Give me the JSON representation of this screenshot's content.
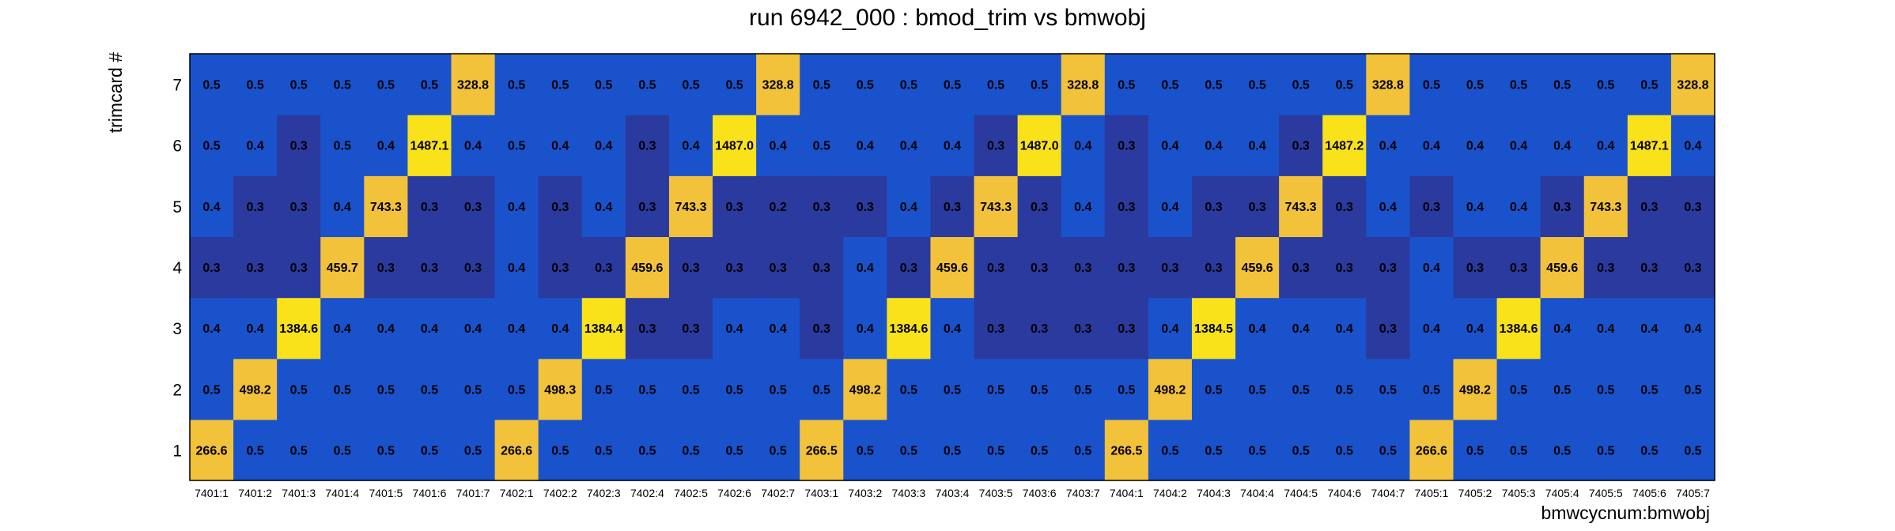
{
  "chart_data": {
    "type": "heatmap",
    "title": "run 6942_000 : bmod_trim vs bmwobj",
    "xlabel": "bmwcycnum:bmwobj",
    "ylabel": "trimcard #",
    "x_categories": [
      "7401:1",
      "7401:2",
      "7401:3",
      "7401:4",
      "7401:5",
      "7401:6",
      "7401:7",
      "7402:1",
      "7402:2",
      "7402:3",
      "7402:4",
      "7402:5",
      "7402:6",
      "7402:7",
      "7403:1",
      "7403:2",
      "7403:3",
      "7403:4",
      "7403:5",
      "7403:6",
      "7403:7",
      "7404:1",
      "7404:2",
      "7404:3",
      "7404:4",
      "7404:5",
      "7404:6",
      "7404:7",
      "7405:1",
      "7405:2",
      "7405:3",
      "7405:4",
      "7405:5",
      "7405:6",
      "7405:7"
    ],
    "y_categories": [
      "1",
      "2",
      "3",
      "4",
      "5",
      "6",
      "7"
    ],
    "values": [
      [
        "266.6",
        "0.5",
        "0.5",
        "0.5",
        "0.5",
        "0.5",
        "0.5",
        "266.6",
        "0.5",
        "0.5",
        "0.5",
        "0.5",
        "0.5",
        "0.5",
        "266.5",
        "0.5",
        "0.5",
        "0.5",
        "0.5",
        "0.5",
        "0.5",
        "266.5",
        "0.5",
        "0.5",
        "0.5",
        "0.5",
        "0.5",
        "0.5",
        "266.6",
        "0.5",
        "0.5",
        "0.5",
        "0.5",
        "0.5",
        "0.5"
      ],
      [
        "0.5",
        "498.2",
        "0.5",
        "0.5",
        "0.5",
        "0.5",
        "0.5",
        "0.5",
        "498.3",
        "0.5",
        "0.5",
        "0.5",
        "0.5",
        "0.5",
        "0.5",
        "498.2",
        "0.5",
        "0.5",
        "0.5",
        "0.5",
        "0.5",
        "0.5",
        "498.2",
        "0.5",
        "0.5",
        "0.5",
        "0.5",
        "0.5",
        "0.5",
        "498.2",
        "0.5",
        "0.5",
        "0.5",
        "0.5",
        "0.5"
      ],
      [
        "0.4",
        "0.4",
        "1384.6",
        "0.4",
        "0.4",
        "0.4",
        "0.4",
        "0.4",
        "0.4",
        "1384.4",
        "0.3",
        "0.3",
        "0.4",
        "0.4",
        "0.3",
        "0.4",
        "1384.6",
        "0.4",
        "0.3",
        "0.3",
        "0.3",
        "0.3",
        "0.4",
        "1384.5",
        "0.4",
        "0.4",
        "0.4",
        "0.3",
        "0.4",
        "0.4",
        "1384.6",
        "0.4",
        "0.4",
        "0.4",
        "0.4"
      ],
      [
        "0.3",
        "0.3",
        "0.3",
        "459.7",
        "0.3",
        "0.3",
        "0.3",
        "0.4",
        "0.3",
        "0.3",
        "459.6",
        "0.3",
        "0.3",
        "0.3",
        "0.3",
        "0.4",
        "0.3",
        "459.6",
        "0.3",
        "0.3",
        "0.3",
        "0.3",
        "0.3",
        "0.3",
        "459.6",
        "0.3",
        "0.3",
        "0.3",
        "0.4",
        "0.3",
        "0.3",
        "459.6",
        "0.3",
        "0.3",
        "0.3"
      ],
      [
        "0.4",
        "0.3",
        "0.3",
        "0.4",
        "743.3",
        "0.3",
        "0.3",
        "0.4",
        "0.3",
        "0.4",
        "0.3",
        "743.3",
        "0.3",
        "0.2",
        "0.3",
        "0.3",
        "0.4",
        "0.3",
        "743.3",
        "0.3",
        "0.4",
        "0.3",
        "0.4",
        "0.3",
        "0.3",
        "743.3",
        "0.3",
        "0.4",
        "0.3",
        "0.4",
        "0.4",
        "0.3",
        "743.3",
        "0.3",
        "0.3"
      ],
      [
        "0.5",
        "0.4",
        "0.3",
        "0.5",
        "0.4",
        "1487.1",
        "0.4",
        "0.5",
        "0.4",
        "0.4",
        "0.3",
        "0.4",
        "1487.0",
        "0.4",
        "0.5",
        "0.4",
        "0.4",
        "0.4",
        "0.3",
        "1487.0",
        "0.4",
        "0.3",
        "0.4",
        "0.4",
        "0.4",
        "0.3",
        "1487.2",
        "0.4",
        "0.4",
        "0.4",
        "0.4",
        "0.4",
        "0.4",
        "1487.1",
        "0.4"
      ],
      [
        "0.5",
        "0.5",
        "0.5",
        "0.5",
        "0.5",
        "0.5",
        "328.8",
        "0.5",
        "0.5",
        "0.5",
        "0.5",
        "0.5",
        "0.5",
        "328.8",
        "0.5",
        "0.5",
        "0.5",
        "0.5",
        "0.5",
        "0.5",
        "328.8",
        "0.5",
        "0.5",
        "0.5",
        "0.5",
        "0.5",
        "0.5",
        "328.8",
        "0.5",
        "0.5",
        "0.5",
        "0.5",
        "0.5",
        "0.5",
        "328.8"
      ]
    ],
    "color_scale": {
      "low": "#2a3a9e",
      "mid": "#1a52cc",
      "high_a": "#f2c23a",
      "high_b": "#f9e21a"
    },
    "grid": false,
    "legend": "none"
  }
}
